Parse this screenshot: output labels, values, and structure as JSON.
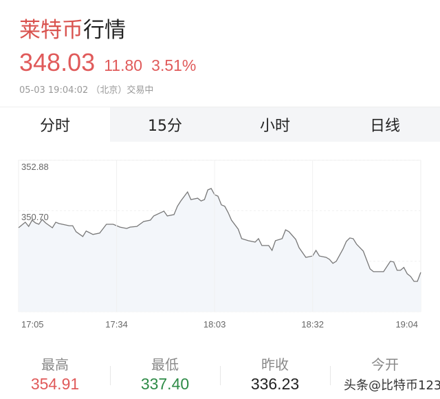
{
  "header": {
    "title_coin": "莱特币",
    "title_suffix": "行情"
  },
  "quote": {
    "price": "348.03",
    "change": "11.80",
    "change_pct": "3.51%",
    "timestamp": "05-03 19:04:02 （北京）交易中"
  },
  "colors": {
    "up": "#e05a5a",
    "down": "#2e8b47",
    "line": "#777777",
    "fill": "#f3f6fa"
  },
  "tabs": [
    {
      "label": "分时",
      "active": true
    },
    {
      "label": "15分"
    },
    {
      "label": "小时"
    },
    {
      "label": "日线"
    }
  ],
  "chart_data": {
    "type": "area",
    "ylim": [
      346.33,
      352.88
    ],
    "y_ticks": [
      "352.88",
      "350.70",
      "348.51",
      "346.33"
    ],
    "x_ticks": [
      "17:05",
      "17:34",
      "18:03",
      "18:32",
      "19:04"
    ],
    "xlim": [
      "17:05",
      "19:04"
    ],
    "grid": true,
    "points": [
      [
        "17:06",
        350.08
      ],
      [
        "17:07",
        350.2
      ],
      [
        "17:08",
        350.02
      ],
      [
        "17:09",
        350.29
      ],
      [
        "17:10",
        350.17
      ],
      [
        "17:11",
        350.11
      ],
      [
        "17:12",
        350.32
      ],
      [
        "17:13",
        350.17
      ],
      [
        "17:15",
        349.96
      ],
      [
        "17:16",
        350.2
      ],
      [
        "17:17",
        350.14
      ],
      [
        "17:20",
        350.05
      ],
      [
        "17:21",
        350.05
      ],
      [
        "17:22",
        349.79
      ],
      [
        "17:24",
        349.58
      ],
      [
        "17:25",
        349.82
      ],
      [
        "17:27",
        349.67
      ],
      [
        "17:29",
        349.73
      ],
      [
        "17:31",
        350.11
      ],
      [
        "17:33",
        350.11
      ],
      [
        "17:35",
        349.99
      ],
      [
        "17:37",
        349.93
      ],
      [
        "17:38",
        349.99
      ],
      [
        "17:40",
        350.02
      ],
      [
        "17:42",
        350.23
      ],
      [
        "17:44",
        350.29
      ],
      [
        "17:45",
        350.47
      ],
      [
        "17:48",
        350.68
      ],
      [
        "17:49",
        350.47
      ],
      [
        "17:51",
        350.53
      ],
      [
        "17:52",
        350.89
      ],
      [
        "17:53",
        351.12
      ],
      [
        "17:55",
        351.51
      ],
      [
        "17:56",
        351.18
      ],
      [
        "17:58",
        351.24
      ],
      [
        "17:59",
        351.12
      ],
      [
        "18:00",
        351.18
      ],
      [
        "18:01",
        351.6
      ],
      [
        "18:02",
        351.66
      ],
      [
        "18:03",
        351.39
      ],
      [
        "18:04",
        351.33
      ],
      [
        "18:05",
        350.95
      ],
      [
        "18:06",
        350.89
      ],
      [
        "18:07",
        350.62
      ],
      [
        "18:08",
        350.29
      ],
      [
        "18:10",
        349.9
      ],
      [
        "18:11",
        349.49
      ],
      [
        "18:13",
        349.4
      ],
      [
        "18:15",
        349.34
      ],
      [
        "18:16",
        349.49
      ],
      [
        "18:17",
        349.19
      ],
      [
        "18:19",
        349.19
      ],
      [
        "18:20",
        348.98
      ],
      [
        "18:21",
        349.4
      ],
      [
        "18:23",
        349.49
      ],
      [
        "18:24",
        349.87
      ],
      [
        "18:25",
        349.79
      ],
      [
        "18:27",
        349.46
      ],
      [
        "18:28",
        349.1
      ],
      [
        "18:30",
        348.68
      ],
      [
        "18:32",
        348.74
      ],
      [
        "18:33",
        348.98
      ],
      [
        "18:34",
        348.74
      ],
      [
        "18:36",
        348.68
      ],
      [
        "18:37",
        348.59
      ],
      [
        "18:38",
        348.42
      ],
      [
        "18:39",
        348.51
      ],
      [
        "18:41",
        349.04
      ],
      [
        "18:42",
        349.37
      ],
      [
        "18:43",
        349.52
      ],
      [
        "18:44",
        349.49
      ],
      [
        "18:45",
        349.25
      ],
      [
        "18:47",
        348.95
      ],
      [
        "18:49",
        348.18
      ],
      [
        "18:50",
        348.06
      ],
      [
        "18:52",
        348.06
      ],
      [
        "18:53",
        348.06
      ],
      [
        "18:55",
        348.51
      ],
      [
        "18:56",
        348.48
      ],
      [
        "18:57",
        348.12
      ],
      [
        "18:58",
        348.12
      ],
      [
        "18:59",
        348.24
      ],
      [
        "19:00",
        347.97
      ],
      [
        "19:01",
        347.85
      ],
      [
        "19:02",
        347.64
      ],
      [
        "19:03",
        347.64
      ],
      [
        "19:04",
        348.03
      ]
    ]
  },
  "stats": [
    {
      "label": "最高",
      "value": "354.91",
      "tone": "up"
    },
    {
      "label": "最低",
      "value": "337.40",
      "tone": "down"
    },
    {
      "label": "昨收",
      "value": "336.23",
      "tone": "neutral"
    },
    {
      "label": "今开",
      "value": "",
      "tone": "neutral"
    }
  ],
  "watermark": "头条@比特币123"
}
